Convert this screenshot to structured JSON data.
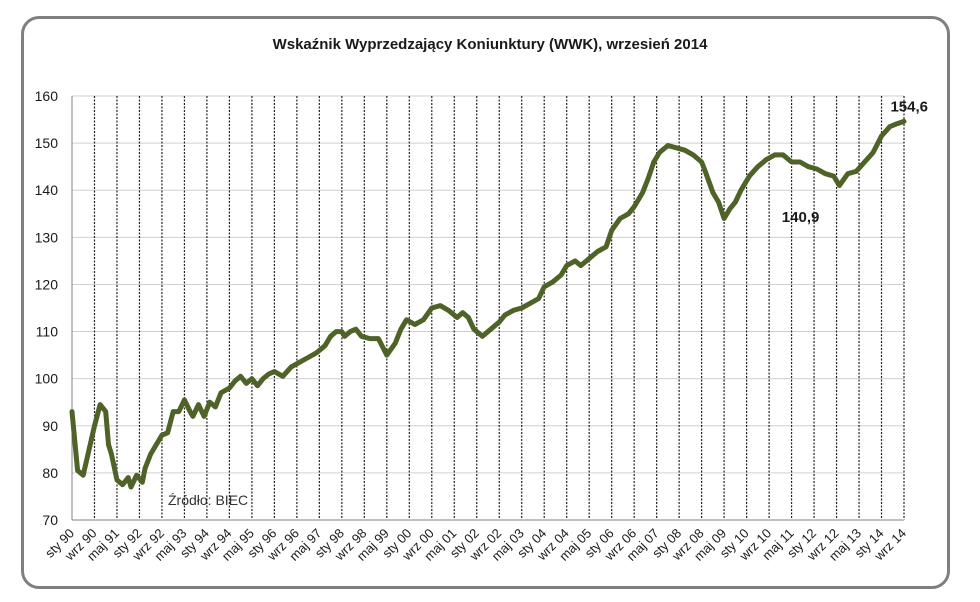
{
  "chart_data": {
    "type": "line",
    "title": "Wskaźnik Wyprzedzający Koniunktury (WWK), wrzesień 2014",
    "xlabel": "",
    "ylabel": "",
    "ylim": [
      70,
      160
    ],
    "yticks": [
      70,
      80,
      90,
      100,
      110,
      120,
      130,
      140,
      150,
      160
    ],
    "x_range": [
      "1990-01",
      "2014-09"
    ],
    "grid": "vertical lines at each x tick label",
    "line_color": "#4f6228",
    "x_tick_labels": [
      "sty 90",
      "wrz 90",
      "maj 91",
      "sty 92",
      "wrz 92",
      "maj 93",
      "sty 94",
      "wrz 94",
      "maj 95",
      "sty 96",
      "wrz 96",
      "maj 97",
      "sty 98",
      "wrz 98",
      "maj 99",
      "sty 00",
      "wrz 00",
      "maj 01",
      "sty 02",
      "wrz 02",
      "maj 03",
      "sty 04",
      "wrz 04",
      "maj 05",
      "sty 06",
      "wrz 06",
      "maj 07",
      "sty 08",
      "wrz 08",
      "maj 09",
      "sty 10",
      "wrz 10",
      "maj 11",
      "sty 12",
      "wrz 12",
      "maj 13",
      "sty 14",
      "wrz 14"
    ],
    "series": [
      {
        "points": [
          [
            "1990-01",
            93
          ],
          [
            "1990-03",
            80.5
          ],
          [
            "1990-05",
            79.5
          ],
          [
            "1990-09",
            90
          ],
          [
            "1990-11",
            94.5
          ],
          [
            "1991-01",
            93
          ],
          [
            "1991-02",
            86
          ],
          [
            "1991-03",
            84
          ],
          [
            "1991-05",
            78.5
          ],
          [
            "1991-07",
            77.5
          ],
          [
            "1991-09",
            79
          ],
          [
            "1991-10",
            77
          ],
          [
            "1991-12",
            79.5
          ],
          [
            "1992-02",
            78
          ],
          [
            "1992-03",
            81
          ],
          [
            "1992-05",
            84
          ],
          [
            "1992-07",
            86
          ],
          [
            "1992-09",
            88
          ],
          [
            "1992-11",
            88.5
          ],
          [
            "1993-01",
            93
          ],
          [
            "1993-03",
            93
          ],
          [
            "1993-05",
            95.5
          ],
          [
            "1993-07",
            93
          ],
          [
            "1993-08",
            92
          ],
          [
            "1993-10",
            94.5
          ],
          [
            "1993-12",
            92
          ],
          [
            "1994-02",
            95
          ],
          [
            "1994-04",
            94
          ],
          [
            "1994-06",
            97
          ],
          [
            "1994-09",
            98
          ],
          [
            "1994-11",
            99.5
          ],
          [
            "1995-01",
            100.5
          ],
          [
            "1995-03",
            99
          ],
          [
            "1995-05",
            100
          ],
          [
            "1995-07",
            98.5
          ],
          [
            "1995-09",
            100
          ],
          [
            "1995-11",
            101
          ],
          [
            "1996-01",
            101.5
          ],
          [
            "1996-04",
            100.5
          ],
          [
            "1996-07",
            102.5
          ],
          [
            "1996-10",
            103.5
          ],
          [
            "1997-01",
            104.5
          ],
          [
            "1997-04",
            105.5
          ],
          [
            "1997-07",
            107
          ],
          [
            "1997-09",
            109
          ],
          [
            "1997-11",
            110
          ],
          [
            "1998-01",
            110
          ],
          [
            "1998-02",
            109
          ],
          [
            "1998-04",
            110
          ],
          [
            "1998-06",
            110.5
          ],
          [
            "1998-08",
            109
          ],
          [
            "1998-11",
            108.5
          ],
          [
            "1999-02",
            108.5
          ],
          [
            "1999-05",
            105
          ],
          [
            "1999-08",
            107.5
          ],
          [
            "1999-10",
            110.5
          ],
          [
            "1999-12",
            112.5
          ],
          [
            "2000-03",
            111.5
          ],
          [
            "2000-06",
            112.5
          ],
          [
            "2000-09",
            115
          ],
          [
            "2000-12",
            115.5
          ],
          [
            "2001-03",
            114.5
          ],
          [
            "2001-06",
            113
          ],
          [
            "2001-08",
            114
          ],
          [
            "2001-10",
            113
          ],
          [
            "2001-12",
            110.5
          ],
          [
            "2002-03",
            109
          ],
          [
            "2002-05",
            110
          ],
          [
            "2002-07",
            111
          ],
          [
            "2002-09",
            112
          ],
          [
            "2002-11",
            113.5
          ],
          [
            "2003-02",
            114.5
          ],
          [
            "2003-05",
            115
          ],
          [
            "2003-08",
            116
          ],
          [
            "2003-11",
            117
          ],
          [
            "2004-01",
            119.5
          ],
          [
            "2004-04",
            120.5
          ],
          [
            "2004-07",
            122
          ],
          [
            "2004-09",
            124
          ],
          [
            "2004-12",
            125
          ],
          [
            "2005-02",
            124
          ],
          [
            "2005-04",
            125
          ],
          [
            "2005-06",
            126
          ],
          [
            "2005-08",
            127
          ],
          [
            "2005-11",
            128
          ],
          [
            "2006-01",
            131.5
          ],
          [
            "2006-04",
            134
          ],
          [
            "2006-07",
            135
          ],
          [
            "2006-09",
            136.5
          ],
          [
            "2006-12",
            139.5
          ],
          [
            "2007-02",
            142.5
          ],
          [
            "2007-04",
            146
          ],
          [
            "2007-06",
            148
          ],
          [
            "2007-09",
            149.5
          ],
          [
            "2007-12",
            149
          ],
          [
            "2008-03",
            148.5
          ],
          [
            "2008-06",
            147.5
          ],
          [
            "2008-09",
            146
          ],
          [
            "2008-10",
            144.5
          ],
          [
            "2009-01",
            139.5
          ],
          [
            "2009-03",
            137.5
          ],
          [
            "2009-05",
            134
          ],
          [
            "2009-07",
            136
          ],
          [
            "2009-09",
            137.5
          ],
          [
            "2009-11",
            140
          ],
          [
            "2010-02",
            143
          ],
          [
            "2010-05",
            145
          ],
          [
            "2010-08",
            146.5
          ],
          [
            "2010-11",
            147.5
          ],
          [
            "2011-02",
            147.5
          ],
          [
            "2011-05",
            146
          ],
          [
            "2011-08",
            146
          ],
          [
            "2011-11",
            145
          ],
          [
            "2012-02",
            144.5
          ],
          [
            "2012-05",
            143.5
          ],
          [
            "2012-08",
            143
          ],
          [
            "2012-10",
            141
          ],
          [
            "2013-01",
            143.5
          ],
          [
            "2013-04",
            144
          ],
          [
            "2013-07",
            146
          ],
          [
            "2013-10",
            148
          ],
          [
            "2014-01",
            151.5
          ],
          [
            "2014-04",
            153.5
          ],
          [
            "2014-06",
            154
          ],
          [
            "2014-09",
            154.6
          ]
        ]
      }
    ],
    "annotations": [
      {
        "label": "154,6",
        "x": "2014-09",
        "y": 154.6
      },
      {
        "label": "140,9",
        "x": "2012-10",
        "y": 140.9
      }
    ],
    "source_note": "Źródło: BIEC"
  }
}
